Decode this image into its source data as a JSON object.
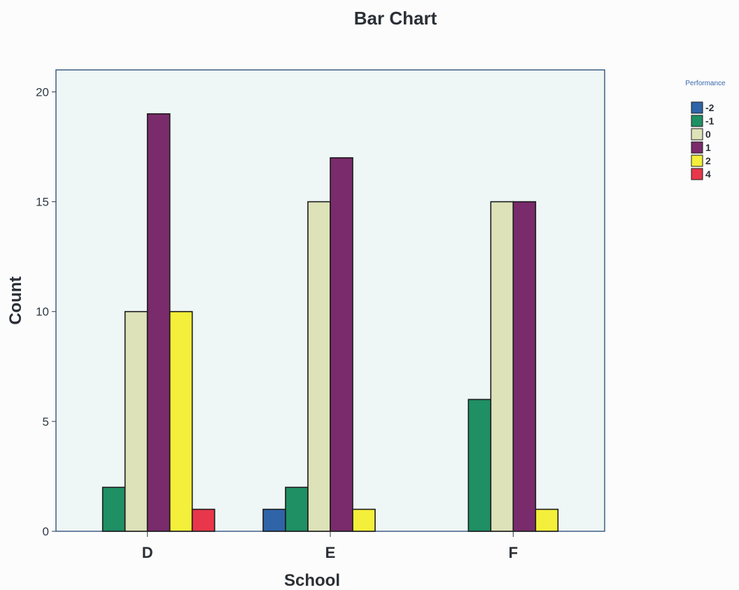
{
  "colors": {
    "plot_background": "#eef6f6",
    "plot_border": "#3f5f86",
    "bar_outline": "#1c1c1c",
    "axis": "#2f3a46"
  },
  "chart_data": {
    "type": "bar",
    "title": "Bar Chart",
    "xlabel": "School",
    "ylabel": "Count",
    "categories": [
      "D",
      "E",
      "F"
    ],
    "ylim": [
      0,
      21
    ],
    "yticks": [
      0,
      5,
      10,
      15,
      20
    ],
    "grid": false,
    "legend_title": "Performance",
    "legend_position": "right",
    "series": [
      {
        "name": "-2",
        "color": "#2f64a8",
        "values": [
          null,
          1,
          null
        ]
      },
      {
        "name": "-1",
        "color": "#1f8f64",
        "values": [
          2,
          2,
          6
        ]
      },
      {
        "name": "0",
        "color": "#dde2b8",
        "values": [
          10,
          15,
          15
        ]
      },
      {
        "name": "1",
        "color": "#7a2b6b",
        "values": [
          19,
          17,
          15
        ]
      },
      {
        "name": "2",
        "color": "#f4ef3a",
        "values": [
          10,
          1,
          1
        ]
      },
      {
        "name": "4",
        "color": "#e8374a",
        "values": [
          1,
          null,
          null
        ]
      }
    ]
  }
}
